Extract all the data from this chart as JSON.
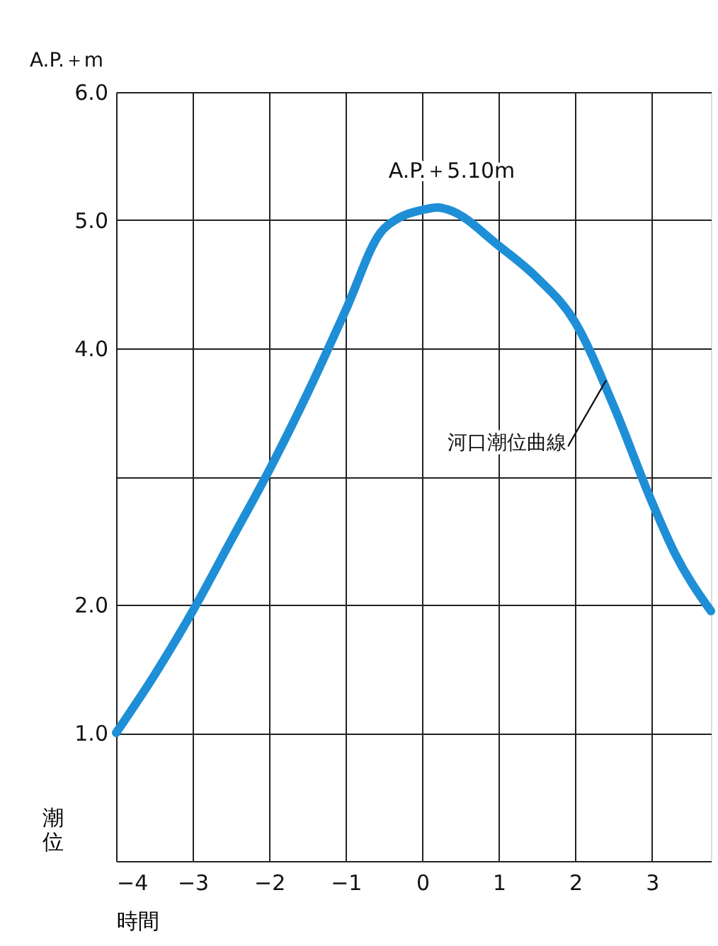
{
  "chart_data": {
    "type": "line",
    "xlabel": "時間",
    "ylabel": "潮位",
    "x": [
      -4,
      -3.5,
      -3,
      -2.5,
      -2,
      -1.5,
      -1,
      -0.55,
      -0.3,
      0,
      0.2,
      0.35,
      1,
      1.5,
      2,
      2.5,
      3,
      3.3,
      3.77
    ],
    "series": [
      {
        "color": "#1e8fd6",
        "values": [
          1.0,
          1.45,
          1.95,
          2.5,
          3.05,
          3.65,
          4.3,
          4.9,
          5.02,
          5.08,
          5.1,
          5.08,
          4.8,
          4.55,
          4.2,
          3.55,
          2.8,
          2.4,
          1.95
        ]
      }
    ],
    "xlim": [
      -4,
      3.77
    ],
    "xticks": [
      -4,
      -3,
      -2,
      -1,
      0,
      1,
      2,
      3
    ],
    "ylim": [
      0,
      6
    ],
    "yticks": [
      {
        "value": 0,
        "label": null
      },
      {
        "value": 1,
        "label": "1.0"
      },
      {
        "value": 2,
        "label": "2.0"
      },
      {
        "value": 3,
        "label": null
      },
      {
        "value": 4,
        "label": "4.0"
      },
      {
        "value": 5,
        "label": "5.0"
      },
      {
        "value": 6,
        "label": "6.0"
      }
    ],
    "grid": true,
    "legend": false,
    "marker": "none",
    "line_style": "solid",
    "annotations": [
      "A.P.＋m",
      {
        "text": "A.P.＋5.10m",
        "x": 0.2,
        "y": 5.1
      },
      {
        "text": "河口潮位曲線",
        "x": 2.4,
        "y": 3.75
      }
    ]
  }
}
